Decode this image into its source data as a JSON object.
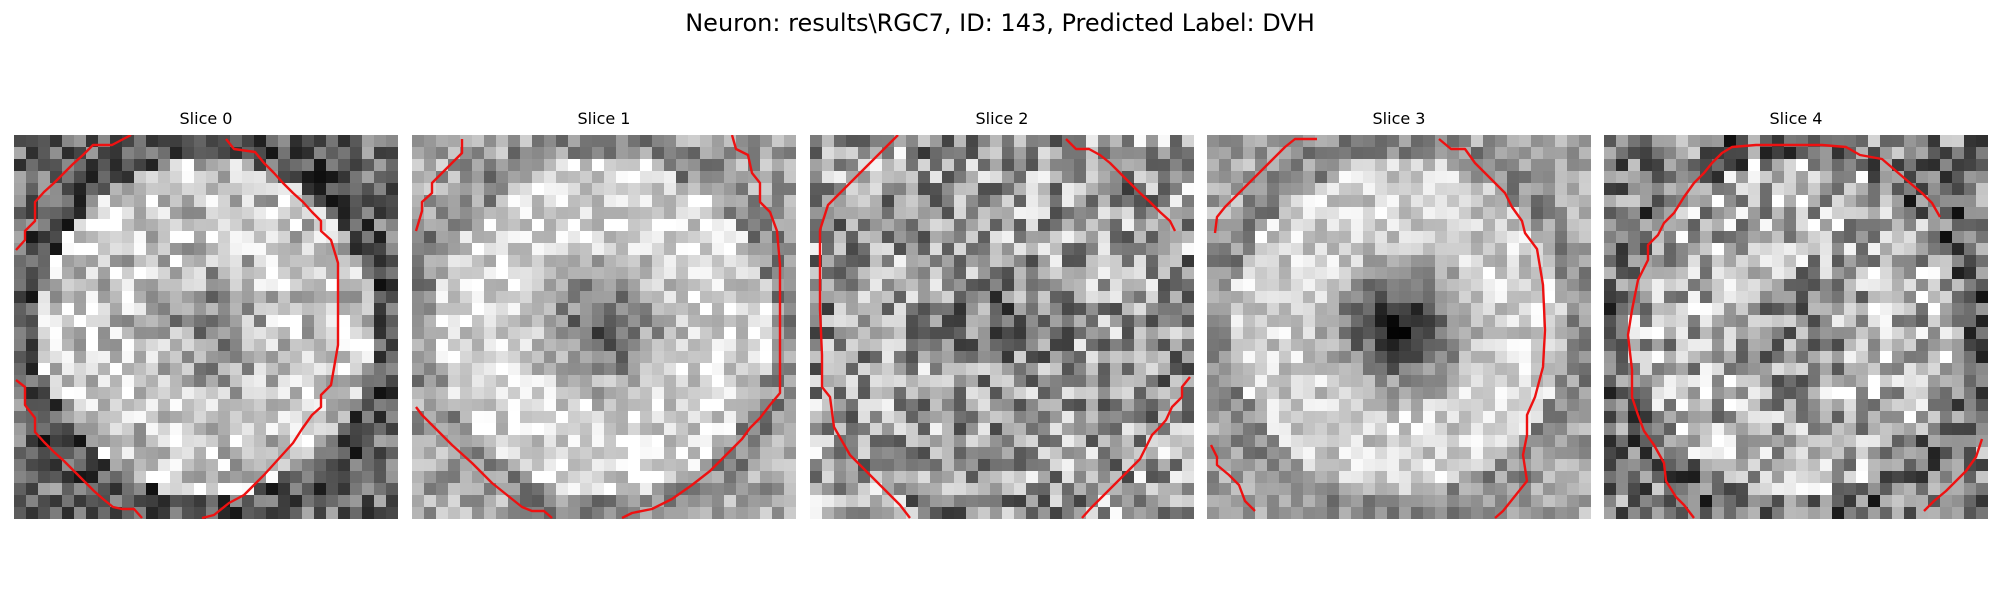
{
  "figure": {
    "title": "Neuron: results\\RGC7, ID: 143, Predicted Label: DVH"
  },
  "panels": [
    {
      "title": "Slice 0"
    },
    {
      "title": "Slice 1"
    },
    {
      "title": "Slice 2"
    },
    {
      "title": "Slice 3"
    },
    {
      "title": "Slice 4"
    }
  ],
  "colors": {
    "contour": "#ee1111",
    "colormap": "gray"
  }
}
